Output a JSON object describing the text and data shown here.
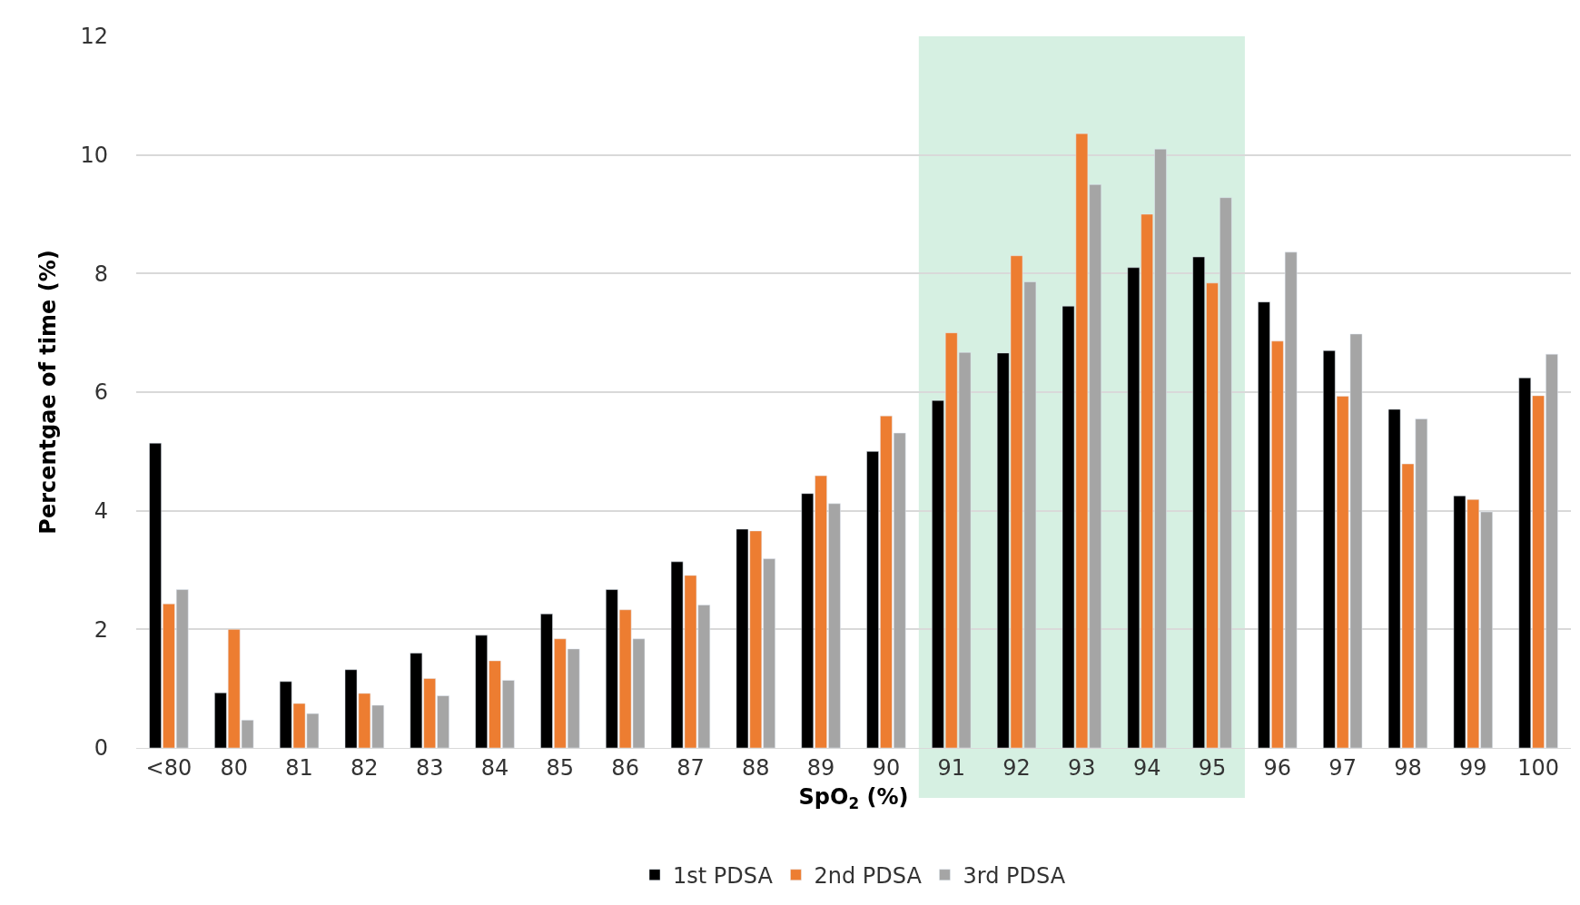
{
  "chart_data": {
    "type": "bar",
    "xlabel": "SpO$_{2}$ (%)",
    "ylabel": "Percentgae of time (%)",
    "categories": [
      "<80",
      "80",
      "81",
      "82",
      "83",
      "84",
      "85",
      "86",
      "87",
      "88",
      "89",
      "90",
      "91",
      "92",
      "93",
      "94",
      "95",
      "96",
      "97",
      "98",
      "99",
      "100"
    ],
    "series": [
      {
        "name": "1st PDSA",
        "color": "#000000",
        "values": [
          5.14,
          0.93,
          1.12,
          1.32,
          1.6,
          1.9,
          2.26,
          2.67,
          3.14,
          3.69,
          4.29,
          5.0,
          5.86,
          6.66,
          7.45,
          8.1,
          8.28,
          7.52,
          6.7,
          5.71,
          4.25,
          6.24
        ]
      },
      {
        "name": "2nd PDSA",
        "color": "#ed7d31",
        "values": [
          2.43,
          2.0,
          0.75,
          0.92,
          1.17,
          1.47,
          1.84,
          2.33,
          2.91,
          3.66,
          4.59,
          5.6,
          7.0,
          8.3,
          10.36,
          9.0,
          7.84,
          6.86,
          5.93,
          4.79,
          4.19,
          5.94
        ]
      },
      {
        "name": "3rd PDSA",
        "color": "#a5a5a5",
        "values": [
          2.67,
          0.47,
          0.58,
          0.72,
          0.88,
          1.14,
          1.67,
          1.84,
          2.41,
          3.19,
          4.12,
          5.31,
          6.67,
          7.86,
          9.5,
          10.1,
          9.28,
          8.36,
          6.98,
          5.55,
          3.98,
          6.64
        ]
      }
    ],
    "bands": [
      {
        "axis": "x",
        "from": "91",
        "to": "95",
        "color": "#d6f0e2"
      }
    ],
    "ylim": [
      0,
      12
    ],
    "yticks": [
      0,
      2,
      4,
      6,
      8,
      10,
      12
    ],
    "grid": "y",
    "legend": "bottom"
  }
}
